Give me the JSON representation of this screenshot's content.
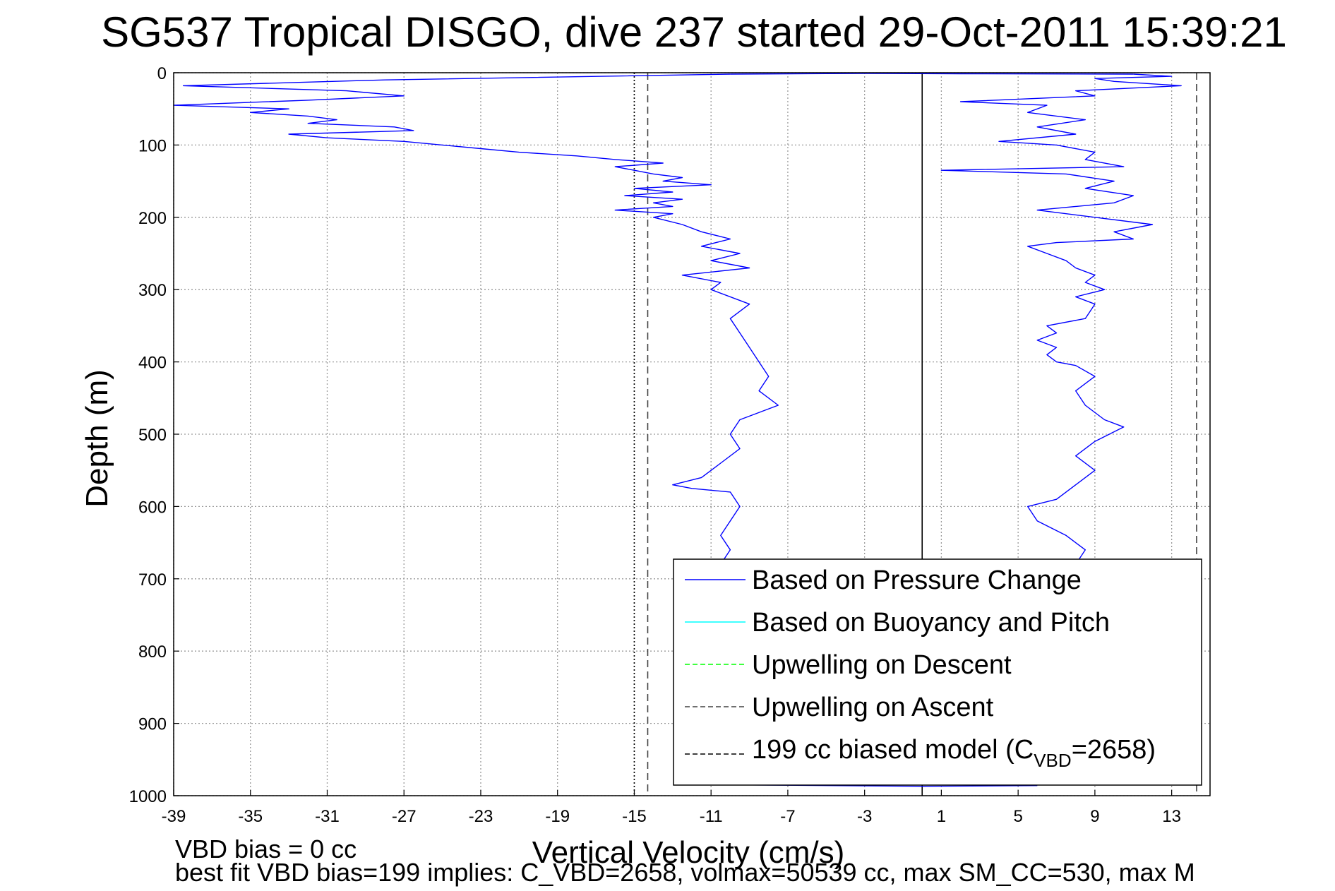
{
  "chart_data": {
    "type": "line",
    "title": "SG537 Tropical DISGO, dive 237 started 29-Oct-2011 15:39:21",
    "xlabel": "Vertical Velocity (cm/s)",
    "ylabel": "Depth (m)",
    "xlim": [
      -39,
      15
    ],
    "ylim": [
      1000,
      0
    ],
    "y_reversed": true,
    "grid": true,
    "x_ticks": [
      "-39",
      "-35",
      "-31",
      "-27",
      "-23",
      "-19",
      "-15",
      "-11",
      "-7",
      "-3",
      "1",
      "5",
      "9",
      "13"
    ],
    "y_ticks": [
      "0",
      "100",
      "200",
      "300",
      "400",
      "500",
      "600",
      "700",
      "800",
      "900",
      "1000"
    ],
    "legend_placement": "bottom-right",
    "legend": [
      {
        "label": "Based on Pressure Change",
        "color": "#0000ff",
        "style": "solid"
      },
      {
        "label": "Based on Buoyancy and Pitch",
        "color": "#00ffff",
        "style": "solid"
      },
      {
        "label": "Upwelling on Descent",
        "color": "#00ff00",
        "style": "dashed"
      },
      {
        "label": "Upwelling on Ascent",
        "color": "#404040",
        "style": "dashed"
      },
      {
        "label_main": "199 cc biased model (C",
        "label_sub": "VBD",
        "label_end": "=2658)",
        "color": "#000000",
        "style": "dashed"
      }
    ],
    "series": [
      {
        "name": "Based on Pressure Change",
        "role": "descent",
        "color": "#0000ff",
        "depth": [
          2,
          10,
          18,
          25,
          32,
          38,
          45,
          50,
          55,
          60,
          65,
          70,
          75,
          80,
          85,
          90,
          95,
          100,
          105,
          110,
          115,
          120,
          125,
          130,
          135,
          140,
          145,
          150,
          155,
          160,
          165,
          170,
          175,
          180,
          185,
          190,
          195,
          200,
          210,
          220,
          230,
          240,
          250,
          260,
          270,
          280,
          290,
          300,
          320,
          340,
          360,
          380,
          400,
          420,
          440,
          460,
          480,
          500,
          520,
          540,
          560,
          570,
          575,
          580,
          600,
          620,
          640,
          660,
          680
        ],
        "velocity": [
          -10,
          -28,
          -38.5,
          -30,
          -27,
          -32,
          -39,
          -33,
          -35,
          -32,
          -30.5,
          -32,
          -27.5,
          -26.5,
          -33,
          -31,
          -27,
          -25,
          -23,
          -21,
          -18,
          -16,
          -13.5,
          -16,
          -15,
          -14,
          -12.5,
          -13.5,
          -11,
          -15,
          -13,
          -15.5,
          -12.5,
          -14,
          -13,
          -16,
          -13,
          -14,
          -12.5,
          -11.5,
          -10,
          -11.5,
          -9.5,
          -11,
          -9,
          -12.5,
          -10.5,
          -11,
          -9,
          -10,
          -9.5,
          -9,
          -8.5,
          -8,
          -8.5,
          -7.5,
          -9.5,
          -10,
          -9.5,
          -10.5,
          -11.5,
          -13,
          -12,
          -10,
          -9.5,
          -10,
          -10.5,
          -10,
          -10.5
        ]
      },
      {
        "name": "Based on Pressure Change",
        "role": "ascent",
        "color": "#0000ff",
        "depth": [
          680,
          660,
          640,
          620,
          600,
          590,
          570,
          550,
          530,
          510,
          490,
          480,
          460,
          440,
          420,
          405,
          400,
          390,
          380,
          370,
          360,
          350,
          340,
          320,
          310,
          300,
          290,
          280,
          270,
          260,
          250,
          240,
          235,
          230,
          220,
          210,
          200,
          190,
          180,
          170,
          160,
          150,
          140,
          135,
          130,
          120,
          110,
          100,
          95,
          85,
          75,
          65,
          55,
          45,
          40,
          32,
          25,
          18,
          12,
          8,
          5,
          2
        ],
        "velocity": [
          8,
          8.5,
          7.5,
          6,
          5.5,
          7,
          8,
          9,
          8,
          9,
          10.5,
          9.5,
          8.5,
          8,
          9,
          8,
          7,
          6.5,
          7,
          6,
          7,
          6.5,
          8.5,
          9,
          8,
          9.5,
          8.5,
          9,
          8,
          7.5,
          6.5,
          5.5,
          7,
          11,
          10,
          12,
          9,
          6,
          10,
          11,
          8.5,
          10,
          7.5,
          1,
          10.5,
          8.5,
          9,
          7,
          4,
          8,
          6,
          8.5,
          5.5,
          6.5,
          2,
          9,
          8,
          13.5,
          10,
          9,
          13,
          11
        ]
      },
      {
        "name": "Based on Pressure Change",
        "role": "surface-crossing",
        "color": "#0000ff",
        "depth": [
          2,
          1,
          1.5,
          2
        ],
        "velocity": [
          -10,
          -3,
          2,
          11
        ]
      },
      {
        "name": "Based on Pressure Change",
        "role": "bottom-crossing",
        "color": "#0000ff",
        "depth": [
          985,
          987,
          986
        ],
        "velocity": [
          -10,
          0,
          6
        ]
      }
    ],
    "reference_lines": [
      {
        "label": "Upwelling on Ascent (descent side)",
        "x": -14.3,
        "color": "#404040",
        "style": "dashed"
      },
      {
        "label": "199 cc biased model (descent side)",
        "x": -15,
        "color": "#000000",
        "style": "dotted"
      },
      {
        "label": "Upwelling on Ascent (ascent side)",
        "x": 14.3,
        "color": "#404040",
        "style": "dashed"
      },
      {
        "label": "zero line",
        "x": 0,
        "color": "#000000",
        "style": "solid"
      }
    ]
  },
  "footer": {
    "line1": "VBD bias = 0 cc",
    "line2": "best fit VBD bias=199 implies: C_VBD=2658, volmax=50539 cc, max SM_CC=530, max M"
  }
}
